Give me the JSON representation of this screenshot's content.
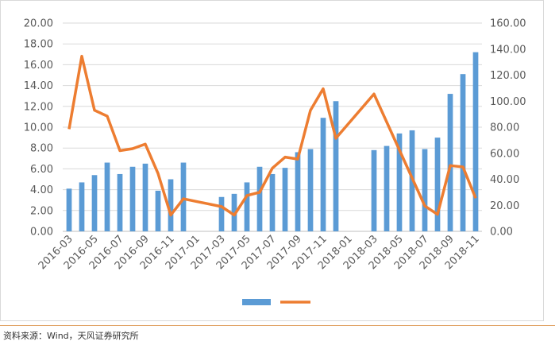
{
  "chart_data": {
    "type": "bar+line",
    "x": [
      "2016-03",
      "2016-04",
      "2016-05",
      "2016-06",
      "2016-07",
      "2016-08",
      "2016-09",
      "2016-10",
      "2016-11",
      "2016-12",
      "2017-01",
      "2017-02",
      "2017-03",
      "2017-04",
      "2017-05",
      "2017-06",
      "2017-07",
      "2017-08",
      "2017-09",
      "2017-10",
      "2017-11",
      "2017-12",
      "2018-01",
      "2018-02",
      "2018-03",
      "2018-04",
      "2018-05",
      "2018-06",
      "2018-07",
      "2018-08",
      "2018-09",
      "2018-10",
      "2018-11"
    ],
    "xtick_labels": [
      "2016-03",
      "2016-05",
      "2016-07",
      "2016-09",
      "2016-11",
      "2017-01",
      "2017-03",
      "2017-05",
      "2017-07",
      "2017-09",
      "2017-11",
      "2018-01",
      "2018-03",
      "2018-05",
      "2018-07",
      "2018-09",
      "2018-11"
    ],
    "series": [
      {
        "type": "bar",
        "axis": "left",
        "color": "#5b9bd5",
        "values": [
          4.1,
          4.7,
          5.4,
          6.6,
          5.5,
          6.2,
          6.5,
          3.9,
          5.0,
          6.6,
          null,
          null,
          3.3,
          3.6,
          4.7,
          6.2,
          5.5,
          6.1,
          7.6,
          7.9,
          10.9,
          12.5,
          null,
          null,
          7.8,
          8.2,
          9.4,
          9.7,
          7.9,
          9.0,
          13.2,
          15.1,
          17.2
        ]
      },
      {
        "type": "line",
        "axis": "right",
        "color": "#ed7d31",
        "values": [
          78.5,
          134.5,
          93,
          88.5,
          62,
          63.5,
          67,
          44.5,
          12.5,
          25,
          null,
          null,
          19,
          12.5,
          27.5,
          30,
          48.5,
          57,
          55.5,
          93,
          109.5,
          71.5,
          null,
          null,
          105.5,
          null,
          null,
          null,
          19.5,
          13,
          50.5,
          49.5,
          25.5
        ],
        "connect_gaps": true
      }
    ],
    "ylim_left": [
      0,
      20
    ],
    "yticks_left": [
      "0.00",
      "2.00",
      "4.00",
      "6.00",
      "8.00",
      "10.00",
      "12.00",
      "14.00",
      "16.00",
      "18.00",
      "20.00"
    ],
    "ylim_right": [
      0,
      160
    ],
    "yticks_right": [
      "0.00",
      "20.00",
      "40.00",
      "60.00",
      "80.00",
      "100.00",
      "120.00",
      "140.00",
      "160.00"
    ],
    "grid": "horizontal",
    "legend_placement": "bottom-center",
    "legend": [
      {
        "color": "#5b9bd5",
        "kind": "bar"
      },
      {
        "color": "#ed7d31",
        "kind": "line"
      }
    ]
  },
  "source_note": "资料来源：Wind，天风证券研究所"
}
